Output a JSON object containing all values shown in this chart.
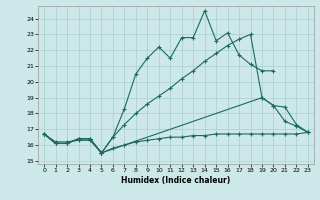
{
  "title": "",
  "xlabel": "Humidex (Indice chaleur)",
  "background_color": "#cce8e8",
  "grid_color": "#aacece",
  "line_color": "#1a6b5a",
  "xlim": [
    -0.5,
    23.5
  ],
  "ylim": [
    14.8,
    24.8
  ],
  "yticks": [
    15,
    16,
    17,
    18,
    19,
    20,
    21,
    22,
    23,
    24
  ],
  "xticks": [
    0,
    1,
    2,
    3,
    4,
    5,
    6,
    7,
    8,
    9,
    10,
    11,
    12,
    13,
    14,
    15,
    16,
    17,
    18,
    19,
    20,
    21,
    22,
    23
  ],
  "line1_x": [
    0,
    1,
    2,
    3,
    4,
    5,
    6,
    7,
    8,
    9,
    10,
    11,
    12,
    13,
    14,
    15,
    16,
    17,
    18,
    19,
    20
  ],
  "line1_y": [
    16.7,
    16.1,
    16.1,
    16.4,
    16.4,
    15.5,
    16.5,
    18.3,
    20.5,
    21.5,
    22.2,
    21.5,
    22.8,
    22.8,
    24.5,
    22.6,
    23.1,
    21.7,
    21.1,
    20.7,
    20.7
  ],
  "line2_x": [
    0,
    1,
    2,
    3,
    4,
    5,
    6,
    7,
    8,
    9,
    10,
    11,
    12,
    13,
    14,
    15,
    16,
    17,
    18,
    19,
    20,
    21,
    22,
    23
  ],
  "line2_y": [
    16.7,
    16.1,
    16.1,
    16.4,
    16.4,
    15.5,
    16.5,
    17.3,
    18.0,
    18.6,
    19.1,
    19.6,
    20.2,
    20.7,
    21.3,
    21.8,
    22.3,
    22.7,
    23.0,
    19.0,
    18.5,
    18.4,
    17.3,
    16.8
  ],
  "line3_x": [
    0,
    1,
    2,
    3,
    4,
    5,
    19,
    20,
    21,
    22,
    23
  ],
  "line3_y": [
    16.7,
    16.1,
    16.1,
    16.4,
    16.4,
    15.5,
    19.0,
    18.5,
    17.5,
    17.2,
    16.8
  ],
  "line4_x": [
    0,
    1,
    2,
    3,
    4,
    5,
    6,
    7,
    8,
    9,
    10,
    11,
    12,
    13,
    14,
    15,
    16,
    17,
    18,
    19,
    20,
    21,
    22,
    23
  ],
  "line4_y": [
    16.7,
    16.2,
    16.2,
    16.3,
    16.3,
    15.5,
    15.8,
    16.0,
    16.2,
    16.3,
    16.4,
    16.5,
    16.5,
    16.6,
    16.6,
    16.7,
    16.7,
    16.7,
    16.7,
    16.7,
    16.7,
    16.7,
    16.7,
    16.8
  ]
}
